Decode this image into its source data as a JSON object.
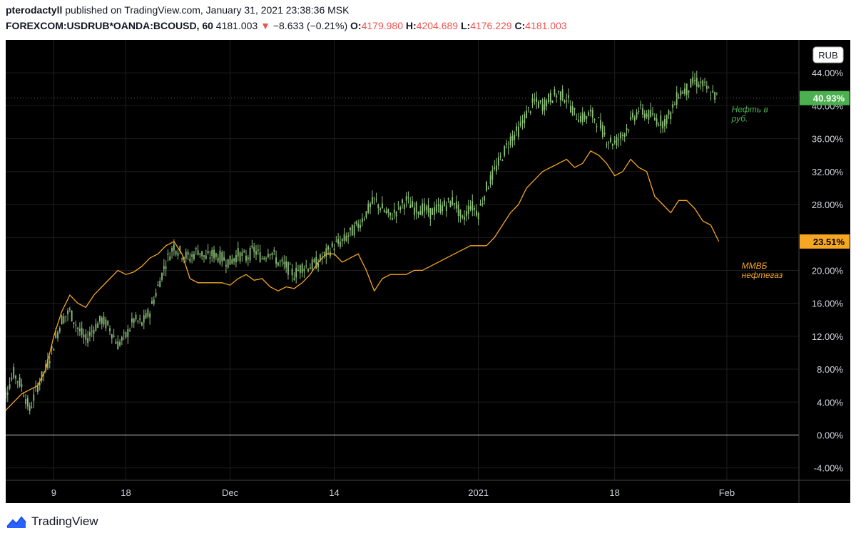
{
  "header": {
    "author": "pterodactyll",
    "published_text": "published on TradingView.com, January 31, 2021 23:38:36 MSK",
    "symbol": "FOREXCOM:USDRUB*OANDA:BCOUSD, 60",
    "last": "4181.003",
    "change": "−8.633 (−0.21%)",
    "o_label": "O:",
    "o_value": "4179.980",
    "h_label": "H:",
    "h_value": "4204.689",
    "l_label": "L:",
    "l_value": "4176.229",
    "c_label": "C:",
    "c_value": "4181.003"
  },
  "footer": {
    "brand": "TradingView"
  },
  "colors": {
    "background": "#000000",
    "grid": "#1e1e1e",
    "oil_rub": "#8ec27b",
    "mmvb": "#f5a623",
    "oil_label": "#4caf50",
    "zero_line": "#d0d0d0"
  },
  "chart_data": {
    "type": "line",
    "currency_badge": "RUB",
    "y_unit": "%",
    "ylim": [
      -5.5,
      48
    ],
    "y_ticks": [
      "44.00%",
      "40.00%",
      "36.00%",
      "32.00%",
      "28.00%",
      "24.00%",
      "20.00%",
      "16.00%",
      "12.00%",
      "8.00%",
      "4.00%",
      "0.00%",
      "-4.00%"
    ],
    "y_tick_values": [
      44,
      40,
      36,
      32,
      28,
      24,
      20,
      16,
      12,
      8,
      4,
      0,
      -4
    ],
    "x_range": [
      "2020-11-03",
      "2021-02-10"
    ],
    "x_ticks": [
      {
        "label": "9",
        "date": "2020-11-09"
      },
      {
        "label": "18",
        "date": "2020-11-18"
      },
      {
        "label": "Dec",
        "date": "2020-12-01"
      },
      {
        "label": "14",
        "date": "2020-12-14"
      },
      {
        "label": "2021",
        "date": "2021-01-01"
      },
      {
        "label": "18",
        "date": "2021-01-18"
      },
      {
        "label": "Feb",
        "date": "2021-02-01"
      }
    ],
    "series": [
      {
        "name": "Нефть в руб.",
        "label_lines": [
          "Нефть в",
          "руб."
        ],
        "last_label": "40.93%",
        "last_value": 40.93,
        "style": "candles",
        "points": [
          [
            "2020-11-02",
            0
          ],
          [
            "2020-11-03",
            5
          ],
          [
            "2020-11-04",
            7.5
          ],
          [
            "2020-11-05",
            6
          ],
          [
            "2020-11-06",
            3
          ],
          [
            "2020-11-07",
            6
          ],
          [
            "2020-11-08",
            8
          ],
          [
            "2020-11-09",
            11
          ],
          [
            "2020-11-10",
            14
          ],
          [
            "2020-11-11",
            15
          ],
          [
            "2020-11-12",
            13
          ],
          [
            "2020-11-13",
            11.5
          ],
          [
            "2020-11-14",
            13
          ],
          [
            "2020-11-15",
            14
          ],
          [
            "2020-11-16",
            13
          ],
          [
            "2020-11-17",
            11
          ],
          [
            "2020-11-18",
            12
          ],
          [
            "2020-11-19",
            14
          ],
          [
            "2020-11-20",
            13.5
          ],
          [
            "2020-11-21",
            15
          ],
          [
            "2020-11-22",
            18
          ],
          [
            "2020-11-23",
            21
          ],
          [
            "2020-11-24",
            23
          ],
          [
            "2020-11-25",
            22
          ],
          [
            "2020-11-26",
            21.5
          ],
          [
            "2020-11-27",
            22.5
          ],
          [
            "2020-11-28",
            21.5
          ],
          [
            "2020-11-29",
            22
          ],
          [
            "2020-11-30",
            21.5
          ],
          [
            "2020-12-01",
            21
          ],
          [
            "2020-12-02",
            22
          ],
          [
            "2020-12-03",
            21.5
          ],
          [
            "2020-12-04",
            22.5
          ],
          [
            "2020-12-05",
            21.5
          ],
          [
            "2020-12-06",
            22.5
          ],
          [
            "2020-12-07",
            21
          ],
          [
            "2020-12-08",
            20.5
          ],
          [
            "2020-12-09",
            19.5
          ],
          [
            "2020-12-10",
            20.5
          ],
          [
            "2020-12-11",
            20.5
          ],
          [
            "2020-12-12",
            21
          ],
          [
            "2020-12-13",
            22
          ],
          [
            "2020-12-14",
            23
          ],
          [
            "2020-12-15",
            23.5
          ],
          [
            "2020-12-16",
            24.5
          ],
          [
            "2020-12-17",
            25.5
          ],
          [
            "2020-12-18",
            27
          ],
          [
            "2020-12-19",
            28.5
          ],
          [
            "2020-12-20",
            27.5
          ],
          [
            "2020-12-21",
            26.5
          ],
          [
            "2020-12-22",
            27.5
          ],
          [
            "2020-12-23",
            28.5
          ],
          [
            "2020-12-24",
            27.5
          ],
          [
            "2020-12-25",
            27.5
          ],
          [
            "2020-12-26",
            27
          ],
          [
            "2020-12-27",
            27.5
          ],
          [
            "2020-12-28",
            28
          ],
          [
            "2020-12-29",
            28.5
          ],
          [
            "2020-12-30",
            26
          ],
          [
            "2020-12-31",
            28
          ],
          [
            "2021-01-01",
            27
          ],
          [
            "2021-01-02",
            30
          ],
          [
            "2021-01-03",
            32
          ],
          [
            "2021-01-04",
            34
          ],
          [
            "2021-01-05",
            36
          ],
          [
            "2021-01-06",
            37
          ],
          [
            "2021-01-07",
            39
          ],
          [
            "2021-01-08",
            40.5
          ],
          [
            "2021-01-09",
            40
          ],
          [
            "2021-01-10",
            41
          ],
          [
            "2021-01-11",
            41.5
          ],
          [
            "2021-01-12",
            41
          ],
          [
            "2021-01-13",
            39
          ],
          [
            "2021-01-14",
            38.5
          ],
          [
            "2021-01-15",
            39
          ],
          [
            "2021-01-16",
            38
          ],
          [
            "2021-01-17",
            36
          ],
          [
            "2021-01-18",
            35.5
          ],
          [
            "2021-01-19",
            36.5
          ],
          [
            "2021-01-20",
            38
          ],
          [
            "2021-01-21",
            39.5
          ],
          [
            "2021-01-22",
            39
          ],
          [
            "2021-01-23",
            38.5
          ],
          [
            "2021-01-24",
            38
          ],
          [
            "2021-01-25",
            39
          ],
          [
            "2021-01-26",
            41.5
          ],
          [
            "2021-01-27",
            42
          ],
          [
            "2021-01-28",
            43
          ],
          [
            "2021-01-29",
            42.5
          ],
          [
            "2021-01-30",
            41.5
          ],
          [
            "2021-01-31",
            40.93
          ]
        ]
      },
      {
        "name": "ММВБ нефтегаз",
        "label_lines": [
          "ММВБ",
          "нефтегаз"
        ],
        "last_label": "23.51%",
        "last_value": 23.51,
        "style": "line",
        "points": [
          [
            "2020-11-02",
            0
          ],
          [
            "2020-11-03",
            3
          ],
          [
            "2020-11-04",
            4
          ],
          [
            "2020-11-05",
            5
          ],
          [
            "2020-11-06",
            5.5
          ],
          [
            "2020-11-07",
            6
          ],
          [
            "2020-11-08",
            8
          ],
          [
            "2020-11-09",
            12
          ],
          [
            "2020-11-10",
            15
          ],
          [
            "2020-11-11",
            17
          ],
          [
            "2020-11-12",
            16
          ],
          [
            "2020-11-13",
            15.5
          ],
          [
            "2020-11-14",
            17
          ],
          [
            "2020-11-15",
            18
          ],
          [
            "2020-11-16",
            19
          ],
          [
            "2020-11-17",
            20
          ],
          [
            "2020-11-18",
            19.5
          ],
          [
            "2020-11-19",
            19.8
          ],
          [
            "2020-11-20",
            20.5
          ],
          [
            "2020-11-21",
            21.5
          ],
          [
            "2020-11-22",
            22
          ],
          [
            "2020-11-23",
            23
          ],
          [
            "2020-11-24",
            23.5
          ],
          [
            "2020-11-25",
            22
          ],
          [
            "2020-11-26",
            19
          ],
          [
            "2020-11-27",
            18.5
          ],
          [
            "2020-11-28",
            18.5
          ],
          [
            "2020-11-29",
            18.5
          ],
          [
            "2020-11-30",
            18.5
          ],
          [
            "2020-12-01",
            18.2
          ],
          [
            "2020-12-02",
            19
          ],
          [
            "2020-12-03",
            19.5
          ],
          [
            "2020-12-04",
            18.8
          ],
          [
            "2020-12-05",
            19
          ],
          [
            "2020-12-06",
            18
          ],
          [
            "2020-12-07",
            17.5
          ],
          [
            "2020-12-08",
            18
          ],
          [
            "2020-12-09",
            17.8
          ],
          [
            "2020-12-10",
            18.5
          ],
          [
            "2020-12-11",
            19.5
          ],
          [
            "2020-12-12",
            21
          ],
          [
            "2020-12-13",
            22
          ],
          [
            "2020-12-14",
            22
          ],
          [
            "2020-12-15",
            21
          ],
          [
            "2020-12-16",
            21.5
          ],
          [
            "2020-12-17",
            22
          ],
          [
            "2020-12-18",
            20
          ],
          [
            "2020-12-19",
            17.5
          ],
          [
            "2020-12-20",
            19
          ],
          [
            "2020-12-21",
            19.5
          ],
          [
            "2020-12-22",
            19.5
          ],
          [
            "2020-12-23",
            19.5
          ],
          [
            "2020-12-24",
            20
          ],
          [
            "2020-12-25",
            20
          ],
          [
            "2020-12-26",
            20.5
          ],
          [
            "2020-12-27",
            21
          ],
          [
            "2020-12-28",
            21.5
          ],
          [
            "2020-12-29",
            22
          ],
          [
            "2020-12-30",
            22.5
          ],
          [
            "2020-12-31",
            23
          ],
          [
            "2021-01-01",
            23
          ],
          [
            "2021-01-02",
            23
          ],
          [
            "2021-01-03",
            24
          ],
          [
            "2021-01-04",
            25.5
          ],
          [
            "2021-01-05",
            27
          ],
          [
            "2021-01-06",
            28
          ],
          [
            "2021-01-07",
            30
          ],
          [
            "2021-01-08",
            31
          ],
          [
            "2021-01-09",
            32
          ],
          [
            "2021-01-10",
            32.5
          ],
          [
            "2021-01-11",
            33
          ],
          [
            "2021-01-12",
            33.5
          ],
          [
            "2021-01-13",
            32.5
          ],
          [
            "2021-01-14",
            33
          ],
          [
            "2021-01-15",
            34.5
          ],
          [
            "2021-01-16",
            34
          ],
          [
            "2021-01-17",
            33
          ],
          [
            "2021-01-18",
            31.5
          ],
          [
            "2021-01-19",
            32
          ],
          [
            "2021-01-20",
            33.5
          ],
          [
            "2021-01-21",
            32.5
          ],
          [
            "2021-01-22",
            32
          ],
          [
            "2021-01-23",
            29
          ],
          [
            "2021-01-24",
            28
          ],
          [
            "2021-01-25",
            27
          ],
          [
            "2021-01-26",
            28.5
          ],
          [
            "2021-01-27",
            28.5
          ],
          [
            "2021-01-28",
            27.5
          ],
          [
            "2021-01-29",
            26
          ],
          [
            "2021-01-30",
            25.5
          ],
          [
            "2021-01-31",
            23.51
          ]
        ]
      }
    ],
    "grid": true,
    "legend": "inline labels at right"
  }
}
